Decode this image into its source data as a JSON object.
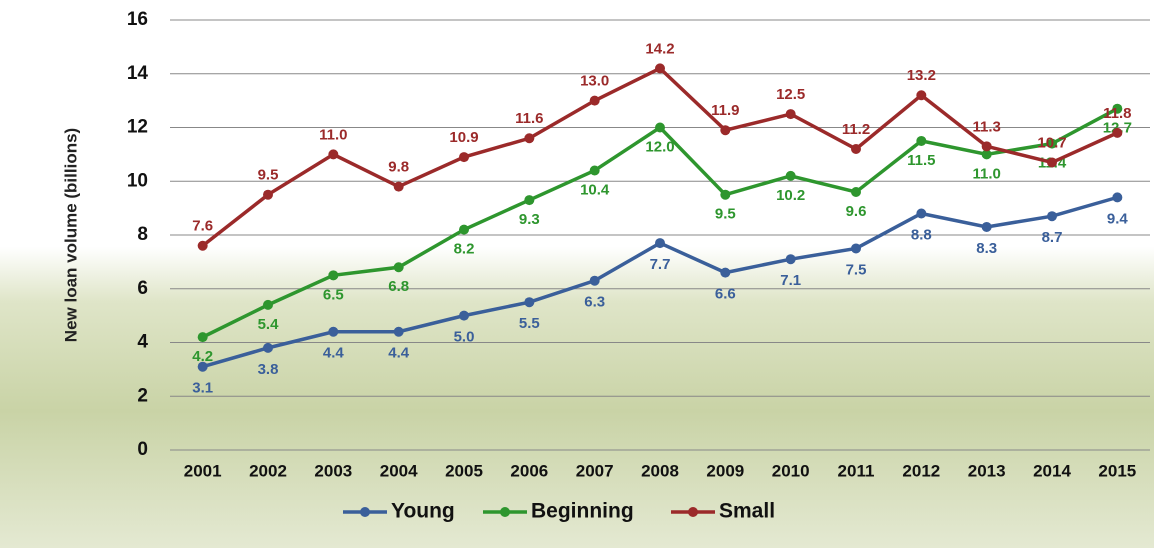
{
  "chart_data": {
    "type": "line",
    "y_label": "New loan volume (billions)",
    "categories": [
      "2001",
      "2002",
      "2003",
      "2004",
      "2005",
      "2006",
      "2007",
      "2008",
      "2009",
      "2010",
      "2011",
      "2012",
      "2013",
      "2014",
      "2015"
    ],
    "series": [
      {
        "name": "Young",
        "color": "#3a5f9a",
        "values": [
          3.1,
          3.8,
          4.4,
          4.4,
          5.0,
          5.5,
          6.3,
          7.7,
          6.6,
          7.1,
          7.5,
          8.8,
          8.3,
          8.7,
          9.4
        ],
        "value_labels": [
          "3.1",
          "3.8",
          "4.4",
          "4.4",
          "5.0",
          "5.5",
          "6.3",
          "7.7",
          "6.6",
          "7.1",
          "7.5",
          "8.8",
          "8.3",
          "8.7",
          "9.4"
        ]
      },
      {
        "name": "Beginning",
        "color": "#2e962e",
        "values": [
          4.2,
          5.4,
          6.5,
          6.8,
          8.2,
          9.3,
          10.4,
          12.0,
          9.5,
          10.2,
          9.6,
          11.5,
          11.0,
          11.4,
          12.7
        ],
        "value_labels": [
          "4.2",
          "5.4",
          "6.5",
          "6.8",
          "8.2",
          "9.3",
          "10.4",
          "12.0",
          "9.5",
          "10.2",
          "9.6",
          "11.5",
          "11.0",
          "11.4",
          "12.7"
        ]
      },
      {
        "name": "Small",
        "color": "#9b2a2a",
        "values": [
          7.6,
          9.5,
          11.0,
          9.8,
          10.9,
          11.6,
          13.0,
          14.2,
          11.9,
          12.5,
          11.2,
          13.2,
          11.3,
          10.7,
          11.8
        ],
        "value_labels": [
          "7.6",
          "9.5",
          "11.0",
          "9.8",
          "10.9",
          "11.6",
          "13.0",
          "14.2",
          "11.9",
          "12.5",
          "11.2",
          "13.2",
          "11.3",
          "10.7",
          "11.8"
        ]
      }
    ],
    "ylim": [
      0,
      16
    ],
    "yticks": [
      0,
      2,
      4,
      6,
      8,
      10,
      12,
      14,
      16
    ],
    "grid": true,
    "legend": "bottom"
  }
}
